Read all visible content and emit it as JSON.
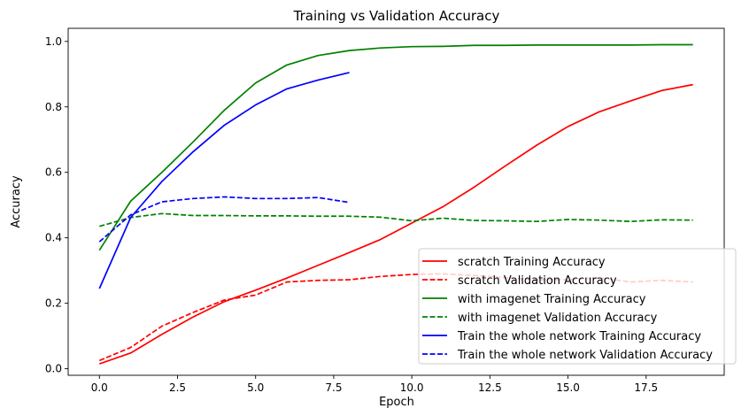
{
  "chart_data": {
    "type": "line",
    "title": "Training vs Validation Accuracy",
    "xlabel": "Epoch",
    "ylabel": "Accuracy",
    "xlim": [
      -1.0,
      20.0
    ],
    "ylim": [
      -0.02,
      1.04
    ],
    "xticks": [
      0.0,
      2.5,
      5.0,
      7.5,
      10.0,
      12.5,
      15.0,
      17.5
    ],
    "xtick_labels": [
      "0.0",
      "2.5",
      "5.0",
      "7.5",
      "10.0",
      "12.5",
      "15.0",
      "17.5"
    ],
    "yticks": [
      0.0,
      0.2,
      0.4,
      0.6,
      0.8,
      1.0
    ],
    "ytick_labels": [
      "0.0",
      "0.2",
      "0.4",
      "0.6",
      "0.8",
      "1.0"
    ],
    "grid": false,
    "legend_position": "lower-right",
    "series": [
      {
        "name": "scratch Training Accuracy",
        "color": "#ff0000",
        "style": "solid",
        "x": [
          0,
          1,
          2,
          3,
          4,
          5,
          6,
          7,
          8,
          9,
          10,
          11,
          12,
          13,
          14,
          15,
          16,
          17,
          18,
          19
        ],
        "values": [
          0.015,
          0.048,
          0.105,
          0.158,
          0.205,
          0.24,
          0.277,
          0.316,
          0.355,
          0.395,
          0.445,
          0.495,
          0.555,
          0.62,
          0.683,
          0.74,
          0.785,
          0.818,
          0.85,
          0.868
        ]
      },
      {
        "name": "scratch Validation Accuracy",
        "color": "#ff0000",
        "style": "dashed",
        "x": [
          0,
          1,
          2,
          3,
          4,
          5,
          6,
          7,
          8,
          9,
          10,
          11,
          12,
          13,
          14,
          15,
          16,
          17,
          18,
          19
        ],
        "values": [
          0.025,
          0.065,
          0.13,
          0.172,
          0.21,
          0.225,
          0.265,
          0.27,
          0.272,
          0.282,
          0.288,
          0.29,
          0.285,
          0.278,
          0.272,
          0.272,
          0.278,
          0.265,
          0.27,
          0.265
        ]
      },
      {
        "name": "with imagenet Training Accuracy",
        "color": "#008000",
        "style": "solid",
        "x": [
          0,
          1,
          2,
          3,
          4,
          5,
          6,
          7,
          8,
          9,
          10,
          11,
          12,
          13,
          14,
          15,
          16,
          17,
          18,
          19
        ],
        "values": [
          0.362,
          0.512,
          0.6,
          0.693,
          0.79,
          0.873,
          0.928,
          0.957,
          0.972,
          0.98,
          0.984,
          0.985,
          0.988,
          0.988,
          0.989,
          0.989,
          0.989,
          0.989,
          0.99,
          0.99
        ]
      },
      {
        "name": "with imagenet Validation Accuracy",
        "color": "#008000",
        "style": "dashed",
        "x": [
          0,
          1,
          2,
          3,
          4,
          5,
          6,
          7,
          8,
          9,
          10,
          11,
          12,
          13,
          14,
          15,
          16,
          17,
          18,
          19
        ],
        "values": [
          0.435,
          0.462,
          0.474,
          0.468,
          0.468,
          0.467,
          0.467,
          0.466,
          0.466,
          0.463,
          0.452,
          0.46,
          0.453,
          0.452,
          0.45,
          0.456,
          0.454,
          0.45,
          0.455,
          0.454
        ]
      },
      {
        "name": "Train the whole network Training Accuracy",
        "color": "#0000ff",
        "style": "solid",
        "x": [
          0,
          1,
          2,
          3,
          4,
          5,
          6,
          7,
          8
        ],
        "values": [
          0.245,
          0.462,
          0.572,
          0.663,
          0.744,
          0.806,
          0.855,
          0.882,
          0.905
        ]
      },
      {
        "name": "Train the whole network Validation Accuracy",
        "color": "#0000ff",
        "style": "dashed",
        "x": [
          0,
          1,
          2,
          3,
          4,
          5,
          6,
          7,
          8
        ],
        "values": [
          0.388,
          0.47,
          0.51,
          0.52,
          0.525,
          0.52,
          0.52,
          0.523,
          0.508
        ]
      }
    ]
  }
}
